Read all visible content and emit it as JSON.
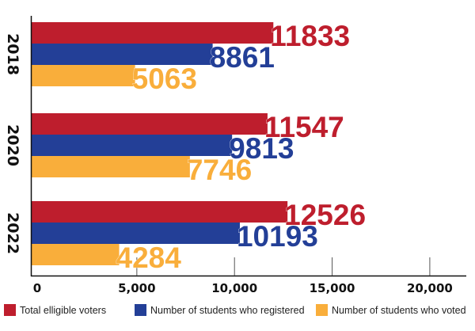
{
  "chart_data": {
    "type": "bar",
    "orientation": "horizontal",
    "title": "",
    "xlabel": "",
    "ylabel": "",
    "categories": [
      "2018",
      "2020",
      "2022"
    ],
    "series": [
      {
        "name": "Total elligible voters",
        "color": "#be1e2d",
        "values": [
          11833,
          11547,
          12526
        ]
      },
      {
        "name": "Number of students who registered",
        "color": "#233f97",
        "values": [
          8861,
          9813,
          10193
        ]
      },
      {
        "name": "Number of students who voted",
        "color": "#f9ae3b",
        "values": [
          5063,
          7746,
          4284
        ]
      }
    ],
    "xlim": [
      0,
      20000
    ],
    "x_ticks": [
      0,
      5000,
      10000,
      15000,
      20000
    ],
    "x_tick_labels": [
      "0",
      "5,000",
      "10,000",
      "15,000",
      "20,000"
    ],
    "grid": false,
    "data_labels": true,
    "legend_position": "bottom"
  },
  "legend": [
    {
      "label": "Total elligible voters",
      "color": "#be1e2d"
    },
    {
      "label": "Number of students who registered",
      "color": "#233f97"
    },
    {
      "label": "Number of students who voted",
      "color": "#f9ae3b"
    }
  ]
}
